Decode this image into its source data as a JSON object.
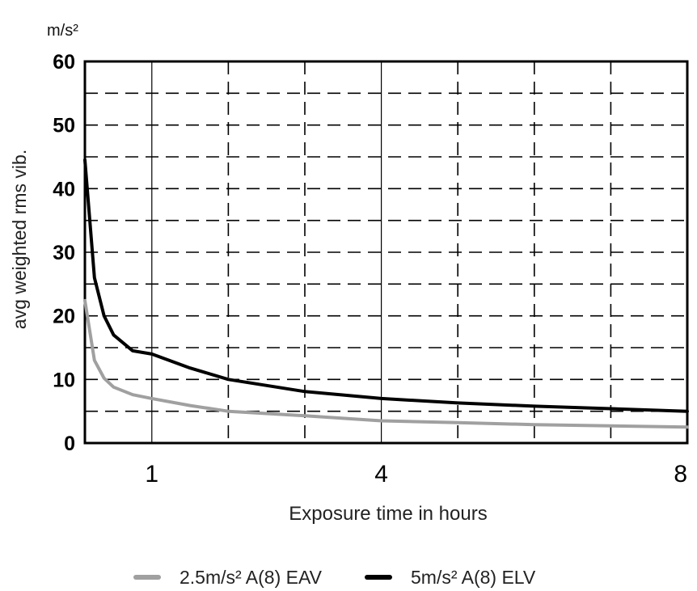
{
  "chart_data": {
    "type": "line",
    "unit_label": "m/s²",
    "ylabel": "avg weighted rms vib.",
    "xlabel": "Exposure time in hours",
    "xlim": [
      0.125,
      8
    ],
    "ylim": [
      0,
      60
    ],
    "yticks": [
      0,
      10,
      20,
      30,
      40,
      50,
      60
    ],
    "xticks": [
      1,
      4,
      8
    ],
    "grid": true,
    "legend_position": "bottom-center",
    "series": [
      {
        "name": "2.5m/s² A(8) EAV",
        "color": "#a0a0a0",
        "x": [
          0.125,
          0.25,
          0.375,
          0.5,
          0.75,
          1,
          1.5,
          2,
          3,
          4,
          5,
          6,
          7,
          8
        ],
        "y": [
          22.4,
          13.0,
          10.2,
          8.8,
          7.6,
          7.0,
          5.9,
          5.0,
          4.3,
          3.5,
          3.2,
          2.9,
          2.7,
          2.5
        ]
      },
      {
        "name": "5m/s² A(8) ELV",
        "color": "#000000",
        "x": [
          0.125,
          0.25,
          0.375,
          0.5,
          0.75,
          1,
          1.5,
          2,
          3,
          4,
          5,
          6,
          7,
          8
        ],
        "y": [
          44.5,
          26.0,
          20.0,
          17.0,
          14.5,
          14.0,
          11.8,
          10.0,
          8.1,
          7.0,
          6.3,
          5.8,
          5.4,
          5.0
        ]
      }
    ]
  }
}
